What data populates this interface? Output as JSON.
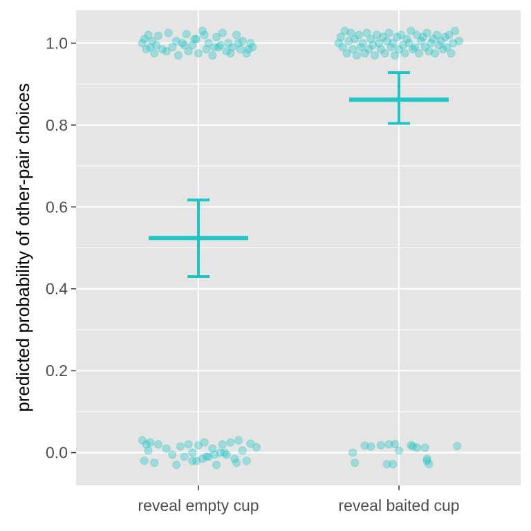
{
  "chart_data": {
    "type": "scatter",
    "title": "",
    "xlabel": "",
    "ylabel": "predicted probability of other-pair choices",
    "categories": [
      "reveal empty cup",
      "reveal baited cup"
    ],
    "ylim": [
      -0.08,
      1.08
    ],
    "yticks": [
      "0.0",
      "0.2",
      "0.4",
      "0.6",
      "0.8",
      "1.0"
    ],
    "grid": true,
    "legend": "none",
    "colors": {
      "points": "#1fc4c4",
      "panel": "#e5e5e5",
      "grid": "#ffffff",
      "estimate": "#1fc4c4"
    },
    "estimates": [
      {
        "category": "reveal empty cup",
        "mean": 0.524,
        "lower": 0.43,
        "upper": 0.617
      },
      {
        "category": "reveal baited cup",
        "mean": 0.862,
        "lower": 0.804,
        "upper": 0.928
      }
    ],
    "points": [
      {
        "category": "reveal empty cup",
        "offsets": [
          -0.28,
          -0.26,
          -0.25,
          -0.24,
          -0.23,
          -0.22,
          -0.2,
          -0.18,
          -0.15,
          -0.13,
          -0.1,
          -0.08,
          -0.06,
          -0.05,
          -0.03,
          -0.01,
          0.0,
          0.02,
          0.04,
          0.05,
          0.07,
          0.09,
          0.1,
          0.12,
          0.14,
          0.15,
          0.17,
          0.19,
          0.21,
          0.22,
          0.24,
          0.26,
          0.27,
          -0.27,
          -0.21,
          -0.16,
          -0.11,
          -0.07,
          -0.02,
          0.03,
          0.08,
          0.11,
          0.16,
          0.2,
          0.25
        ],
        "values": [
          1.0,
          0.985,
          1.02,
          0.99,
          1.005,
          0.975,
          1.018,
          0.985,
          1.025,
          0.99,
          0.97,
          1.0,
          1.022,
          0.98,
          0.995,
          1.01,
          0.975,
          1.03,
          0.985,
          1.0,
          0.97,
          1.015,
          0.99,
          1.025,
          0.98,
          1.0,
          0.99,
          1.02,
          0.985,
          1.005,
          0.975,
          1.0,
          0.99,
          1.01,
          0.995,
          0.98,
          1.005,
          0.995,
          1.01,
          1.02,
          0.99,
          0.995,
          0.975,
          1.0,
          0.985
        ]
      },
      {
        "category": "reveal empty cup",
        "offsets": [
          -0.28,
          -0.27,
          -0.26,
          -0.25,
          -0.24,
          -0.22,
          -0.16,
          -0.13,
          -0.11,
          -0.09,
          -0.07,
          -0.05,
          -0.03,
          -0.01,
          0.0,
          0.02,
          0.03,
          0.05,
          0.07,
          0.09,
          0.11,
          0.12,
          0.14,
          0.16,
          0.18,
          0.2,
          0.22,
          0.24,
          0.26,
          0.29,
          -0.03,
          0.04,
          0.08,
          0.13,
          0.19,
          -0.2
        ],
        "values": [
          0.03,
          -0.02,
          0.02,
          0.005,
          0.025,
          -0.025,
          0.01,
          -0.005,
          -0.03,
          0.015,
          -0.01,
          0.02,
          0.0,
          -0.02,
          0.018,
          -0.015,
          0.025,
          -0.01,
          0.01,
          -0.03,
          0.0,
          0.02,
          -0.005,
          0.025,
          -0.015,
          0.03,
          0.005,
          -0.02,
          0.022,
          0.013,
          -0.02,
          -0.01,
          -0.005,
          0.0,
          -0.025,
          0.02
        ]
      },
      {
        "category": "reveal baited cup",
        "offsets": [
          -0.3,
          -0.29,
          -0.28,
          -0.27,
          -0.26,
          -0.25,
          -0.24,
          -0.23,
          -0.22,
          -0.21,
          -0.2,
          -0.19,
          -0.18,
          -0.17,
          -0.16,
          -0.15,
          -0.14,
          -0.13,
          -0.12,
          -0.11,
          -0.1,
          -0.09,
          -0.08,
          -0.07,
          -0.06,
          -0.05,
          -0.04,
          -0.03,
          -0.02,
          -0.01,
          0.0,
          0.01,
          0.02,
          0.03,
          0.04,
          0.05,
          0.06,
          0.07,
          0.08,
          0.09,
          0.1,
          0.11,
          0.12,
          0.13,
          0.14,
          0.15,
          0.16,
          0.17,
          0.18,
          0.19,
          0.2,
          0.21,
          0.22,
          0.23,
          0.24,
          0.25,
          0.26,
          0.27,
          0.28,
          0.3
        ],
        "values": [
          1.0,
          1.015,
          0.99,
          1.03,
          0.975,
          1.005,
          1.025,
          0.985,
          1.01,
          0.97,
          1.02,
          0.99,
          1.0,
          0.975,
          1.025,
          0.985,
          1.01,
          0.995,
          0.97,
          1.02,
          1.0,
          0.985,
          1.015,
          0.975,
          1.005,
          1.025,
          0.99,
          1.0,
          0.97,
          1.015,
          0.985,
          1.02,
          0.995,
          0.975,
          1.01,
          1.0,
          1.03,
          0.985,
          0.99,
          1.02,
          0.975,
          1.005,
          1.015,
          0.99,
          1.025,
          0.98,
          1.0,
          1.01,
          0.975,
          1.02,
          0.995,
          1.005,
          0.985,
          1.015,
          0.99,
          1.02,
          0.975,
          1.0,
          1.03,
          1.005
        ]
      },
      {
        "category": "reveal baited cup",
        "offsets": [
          -0.23,
          -0.22,
          -0.17,
          -0.14,
          -0.09,
          -0.06,
          -0.05,
          -0.03,
          -0.02,
          0.0,
          0.06,
          0.07,
          0.09,
          0.13,
          0.14,
          0.14,
          0.15,
          0.29
        ],
        "values": [
          0.0,
          -0.025,
          0.017,
          0.015,
          0.018,
          -0.028,
          0.02,
          -0.028,
          0.021,
          0.005,
          0.018,
          0.015,
          0.012,
          0.012,
          -0.015,
          -0.02,
          -0.028,
          0.016
        ]
      }
    ]
  }
}
